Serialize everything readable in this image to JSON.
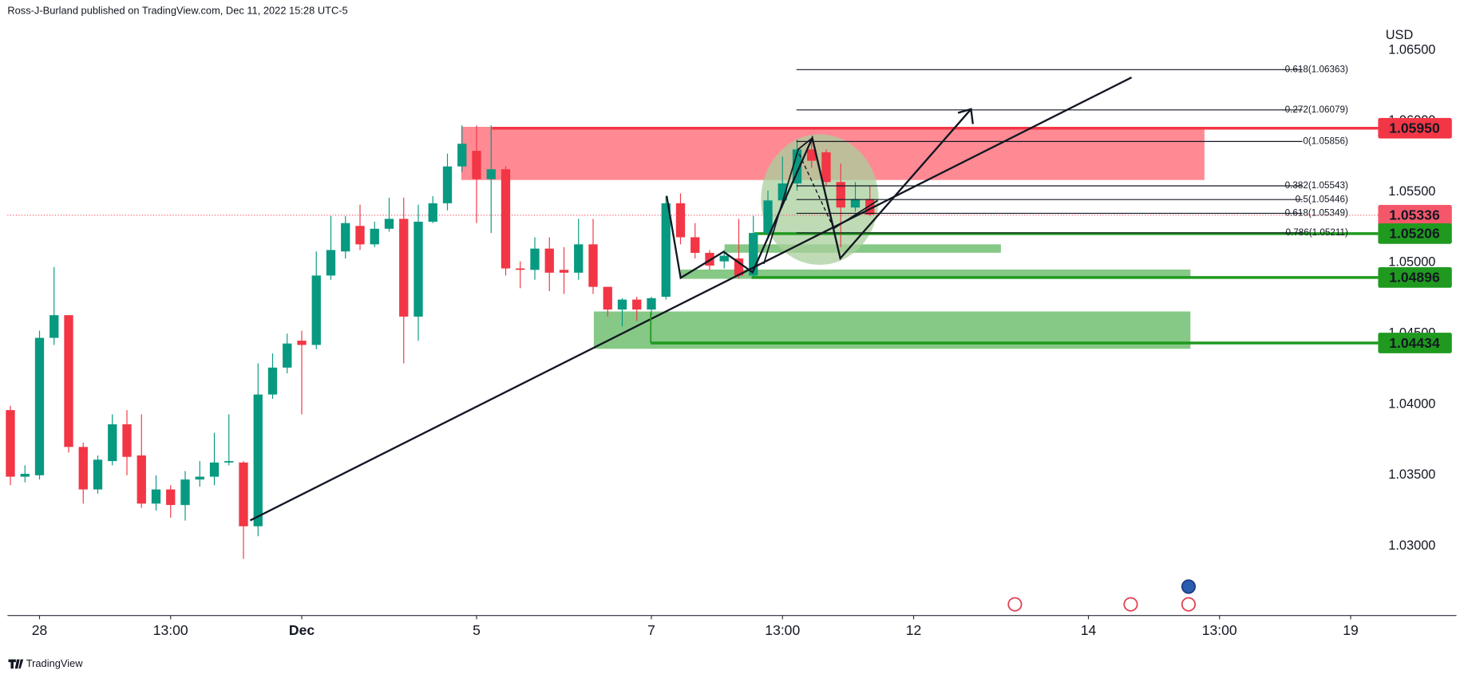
{
  "chart_data": {
    "type": "candlestick",
    "title": "Ross-J-Burland published on TradingView.com, Dec 11, 2022 15:28 UTC-5",
    "currency": "USD",
    "watermark": "TradingView",
    "up_color": "#089981",
    "down_color": "#f23645",
    "grid": false,
    "ylim": [
      1.0251,
      1.0671
    ],
    "yticks": [
      {
        "value": 1.03,
        "label": "1.03000"
      },
      {
        "value": 1.035,
        "label": "1.03500"
      },
      {
        "value": 1.04,
        "label": "1.04000"
      },
      {
        "value": 1.045,
        "label": "1.04500"
      },
      {
        "value": 1.05,
        "label": "1.05000"
      },
      {
        "value": 1.055,
        "label": "1.05500"
      },
      {
        "value": 1.06,
        "label": "1.06000"
      },
      {
        "value": 1.065,
        "label": "1.06500"
      }
    ],
    "xlim": [
      -0.2,
      93.5
    ],
    "xticks": [
      {
        "value": 2,
        "label": "28"
      },
      {
        "value": 11,
        "label": "13:00"
      },
      {
        "value": 20,
        "label": "Dec"
      },
      {
        "value": 32,
        "label": "5"
      },
      {
        "value": 44,
        "label": "7"
      },
      {
        "value": 53,
        "label": "13:00"
      },
      {
        "value": 62,
        "label": "12"
      },
      {
        "value": 74,
        "label": "14"
      },
      {
        "value": 83,
        "label": "13:00"
      },
      {
        "value": 92,
        "label": "19"
      }
    ],
    "open": [
      1.0396,
      1.0349,
      1.035,
      1.0447,
      1.0463,
      1.037,
      1.034,
      1.036,
      1.0386,
      1.0364,
      1.033,
      1.034,
      1.0329,
      1.0347,
      1.0349,
      1.0359,
      1.0359,
      1.0314,
      1.0407,
      1.0426,
      1.0445,
      1.0442,
      1.0491,
      1.0508,
      1.0526,
      1.0513,
      1.0524,
      1.0531,
      1.0462,
      1.0529,
      1.0542,
      1.0568,
      1.0579,
      1.0559,
      1.0566,
      1.0496,
      1.0495,
      1.051,
      1.0495,
      1.0493,
      1.0513,
      1.0483,
      1.0467,
      1.0474,
      1.0467,
      1.0476,
      1.0542,
      1.0518,
      1.0507,
      1.0501,
      1.0503,
      1.0491,
      1.0521,
      1.0544,
      1.0556,
      1.058,
      1.0578,
      1.0557,
      1.0539,
      1.0545
    ],
    "high": [
      1.0399,
      1.0357,
      1.0452,
      1.0497,
      1.0463,
      1.0373,
      1.0364,
      1.0393,
      1.0396,
      1.0393,
      1.035,
      1.0343,
      1.0353,
      1.036,
      1.038,
      1.0393,
      1.036,
      1.0429,
      1.0436,
      1.045,
      1.0452,
      1.0508,
      1.0533,
      1.0533,
      1.0541,
      1.0529,
      1.0546,
      1.0546,
      1.0541,
      1.0547,
      1.0577,
      1.0597,
      1.0597,
      1.0597,
      1.0568,
      1.0501,
      1.0518,
      1.0518,
      1.0511,
      1.0531,
      1.0531,
      1.0483,
      1.0475,
      1.0476,
      1.0476,
      1.0547,
      1.0549,
      1.0528,
      1.0509,
      1.0509,
      1.0531,
      1.0533,
      1.0551,
      1.0575,
      1.0587,
      1.0588,
      1.058,
      1.057,
      1.0557,
      1.0554
    ],
    "low": [
      1.0343,
      1.0345,
      1.0347,
      1.0442,
      1.0366,
      1.033,
      1.0337,
      1.0357,
      1.035,
      1.0327,
      1.0325,
      1.032,
      1.0318,
      1.0342,
      1.0343,
      1.0357,
      1.0291,
      1.0307,
      1.0404,
      1.0422,
      1.0393,
      1.0439,
      1.0488,
      1.0503,
      1.0509,
      1.0511,
      1.0522,
      1.0429,
      1.0445,
      1.0528,
      1.0537,
      1.0564,
      1.0528,
      1.0521,
      1.0491,
      1.0482,
      1.0488,
      1.048,
      1.0478,
      1.0488,
      1.0478,
      1.0462,
      1.0455,
      1.0459,
      1.0463,
      1.0474,
      1.0513,
      1.0503,
      1.0495,
      1.0496,
      1.0489,
      1.049,
      1.0518,
      1.0539,
      1.0551,
      1.0567,
      1.0554,
      1.0511,
      1.0536,
      1.0533
    ],
    "close": [
      1.0349,
      1.0351,
      1.0447,
      1.0463,
      1.037,
      1.034,
      1.0361,
      1.0386,
      1.0363,
      1.033,
      1.034,
      1.0329,
      1.0347,
      1.0349,
      1.0359,
      1.036,
      1.0314,
      1.0407,
      1.0426,
      1.0443,
      1.0442,
      1.0491,
      1.0509,
      1.0528,
      1.0513,
      1.0524,
      1.0531,
      1.0462,
      1.0529,
      1.0542,
      1.0568,
      1.0584,
      1.0559,
      1.0566,
      1.0496,
      1.0495,
      1.051,
      1.0493,
      1.0493,
      1.0513,
      1.0483,
      1.0467,
      1.0474,
      1.0467,
      1.0475,
      1.0542,
      1.0518,
      1.0507,
      1.0498,
      1.0505,
      1.0491,
      1.0521,
      1.0544,
      1.0556,
      1.058,
      1.0572,
      1.0557,
      1.0539,
      1.0545,
      1.0534
    ],
    "levels": [
      {
        "value": 1.0595,
        "label": "1.05950",
        "color": "#f23645"
      },
      {
        "value": 1.05336,
        "label": "1.05336",
        "color": "#f5576a"
      },
      {
        "value": 1.05206,
        "label": "1.05206",
        "color": "#1f9a1f"
      },
      {
        "value": 1.04896,
        "label": "1.04896",
        "color": "#1f9a1f"
      },
      {
        "value": 1.04434,
        "label": "1.04434",
        "color": "#1f9a1f"
      }
    ],
    "fib_levels": [
      {
        "value": 1.06363,
        "label": "-0.618(1.06363)"
      },
      {
        "value": 1.06079,
        "label": "-0.272(1.06079)"
      },
      {
        "value": 1.05856,
        "label": "0(1.05856)"
      },
      {
        "value": 1.05543,
        "label": "0.382(1.05543)"
      },
      {
        "value": 1.05446,
        "label": "0.5(1.05446)"
      },
      {
        "value": 1.05349,
        "label": "0.618(1.05349)"
      },
      {
        "value": 1.05211,
        "label": "0.786(1.05211)"
      }
    ]
  }
}
